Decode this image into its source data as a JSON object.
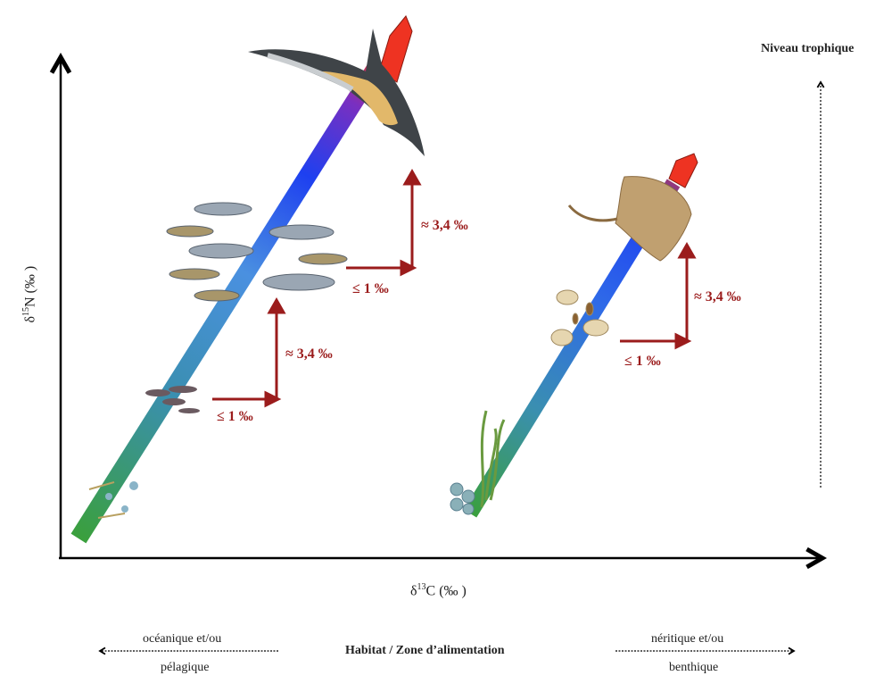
{
  "trophic_axis": {
    "label": "Niveau trophique"
  },
  "y_axis": {
    "label": "δ15N (‰ )",
    "prefix": "δ",
    "sup": "15",
    "suffix": "N (‰ )"
  },
  "x_axis": {
    "label": "δ13C (‰ )",
    "prefix": "δ",
    "sup": "13",
    "suffix": "C (‰ )"
  },
  "habitat": {
    "title": "Habitat / Zone d’alimentation",
    "left_top": "océanique et/ou",
    "left_bottom": "pélagique",
    "right_top": "néritique et/ou",
    "right_bottom": "benthique"
  },
  "steps": {
    "carbon_shift": "≤ 1 ‰",
    "nitrogen_shift": "≈ 3,4 ‰"
  },
  "colors": {
    "arrow_red": "#9b1c1c",
    "gradient_bottom": "#3aa03a",
    "gradient_mid": "#1e50f0",
    "gradient_top": "#7a2fc0",
    "head_red": "#ee3322"
  }
}
